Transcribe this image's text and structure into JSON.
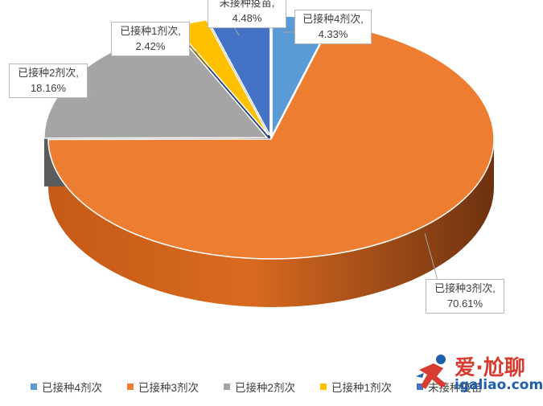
{
  "chart_data": {
    "type": "pie",
    "style": "3d-exploded",
    "legend_position": "bottom",
    "slices": [
      {
        "label": "已接种4剂次",
        "value": 4.33,
        "value_text": "4.33%",
        "callout": "已接种4剂次,",
        "color": "#5b9bd5"
      },
      {
        "label": "已接种3剂次",
        "value": 70.61,
        "value_text": "70.61%",
        "callout": "已接种3剂次,",
        "color": "#ed7d31"
      },
      {
        "label": "已接种2剂次",
        "value": 18.16,
        "value_text": "18.16%",
        "callout": "已接种2剂次,",
        "color": "#a5a5a5"
      },
      {
        "label": "已接种1剂次",
        "value": 2.42,
        "value_text": "2.42%",
        "callout": "已接种1剂次,",
        "color": "#ffc000"
      },
      {
        "label": "未接种疫苗",
        "value": 4.48,
        "value_text": "4.48%",
        "callout": "未接种疫苗,",
        "color": "#4472c4"
      }
    ]
  },
  "watermark": {
    "brand": "爱·尬聊",
    "url": "igaliao.com",
    "brand_color": "#d63c2f",
    "url_color": "#1f5fae",
    "icon": "running-person-icon"
  }
}
